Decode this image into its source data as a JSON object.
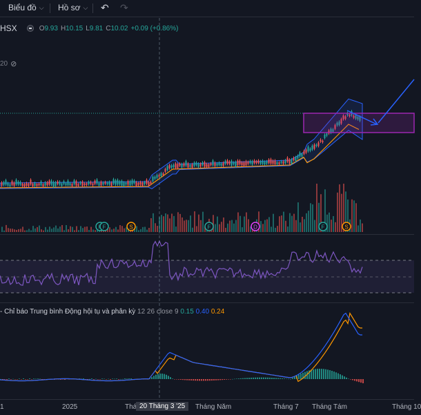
{
  "toolbar": {
    "chart_menu": "Biểu đồ",
    "profile_menu": "Hồ sơ",
    "undo_icon": "undo-icon",
    "redo_icon": "redo-icon"
  },
  "legend": {
    "symbol": "HSX",
    "open_label": "O",
    "open": "9.93",
    "high_label": "H",
    "high": "10.15",
    "low_label": "L",
    "low": "9.81",
    "close_label": "C",
    "close": "10.02",
    "change": "+0.09 (+0.86%)"
  },
  "price_indicator": {
    "value": "20",
    "visibility_icon": "eye-off-icon"
  },
  "macd": {
    "name": "- Chỉ báo Trung bình Động hội tụ và phân kỳ",
    "params": "12 26 close 9",
    "histogram": "0.15",
    "macd": "0.40",
    "signal": "0.24",
    "colors": {
      "histogram": "#26a69a",
      "macd": "#2962ff",
      "signal": "#ff9800"
    }
  },
  "time_axis": {
    "labels": [
      "1",
      "2025",
      "Tháng",
      "Tháng Năm",
      "Tháng 7",
      "Tháng Tám",
      "Tháng 10"
    ],
    "crosshair": "20 Tháng 3 '25"
  },
  "event_markers": [
    "F",
    "F",
    "S",
    "F",
    "D",
    "F",
    "S"
  ],
  "colors": {
    "up": "#26a69a",
    "down": "#ef5350",
    "box": "#9c27b0",
    "arrow": "#2962ff",
    "rsi": "#7e57c2"
  }
}
